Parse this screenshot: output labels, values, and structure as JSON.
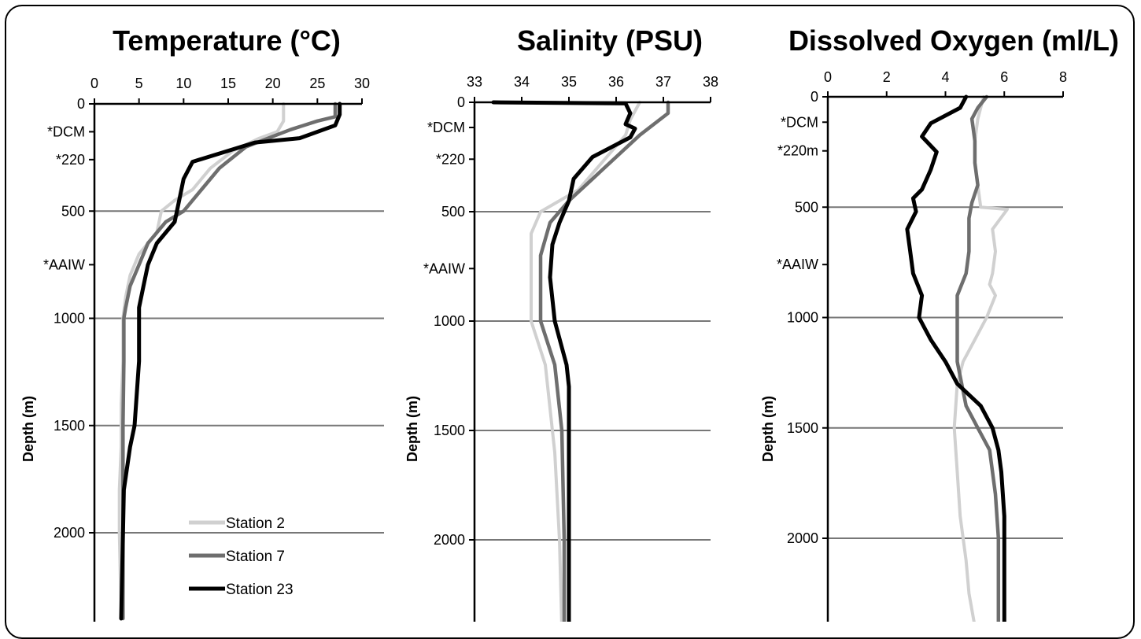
{
  "legend": [
    "Station 2",
    "Station 7",
    "Station 23"
  ],
  "colors": {
    "Station 2": "#d0d0d0",
    "Station 7": "#6e6e6e",
    "Station 23": "#000000",
    "hline": "#777777"
  },
  "chart_data": [
    {
      "type": "line",
      "title": "Temperature (°C)",
      "xlabel": "",
      "ylabel": "Depth (m)",
      "xlim": [
        0,
        30
      ],
      "xticks": [
        0,
        5,
        10,
        15,
        20,
        25,
        30
      ],
      "ylim": [
        0,
        2400
      ],
      "y_inverted": true,
      "yticks": [
        0,
        500,
        1000,
        1500,
        2000
      ],
      "hlines": [
        500,
        1000,
        1500,
        2000
      ],
      "annotations": [
        {
          "text": "*DCM",
          "depth": 130
        },
        {
          "text": "*220",
          "depth": 260
        },
        {
          "text": "*AAIW",
          "depth": 750
        }
      ],
      "legend_position": "bottom-right",
      "series": [
        {
          "name": "Station 2",
          "x": [
            21.2,
            21.2,
            20.5,
            18.5,
            15.5,
            13,
            11,
            9,
            7.5,
            7,
            6,
            5,
            4,
            3.5,
            3.2,
            3.2,
            3,
            3,
            2.8,
            2.8,
            2.9,
            3
          ],
          "y": [
            0,
            80,
            130,
            160,
            220,
            300,
            400,
            450,
            500,
            600,
            650,
            700,
            800,
            900,
            1000,
            1200,
            1400,
            1600,
            1800,
            2000,
            2200,
            2400
          ]
        },
        {
          "name": "Station 7",
          "x": [
            27,
            27,
            25,
            22,
            17,
            14,
            12,
            10,
            8,
            6,
            5,
            4,
            3.5,
            3.3,
            3.3,
            3.2,
            3.2,
            3.2,
            3.2,
            3.2
          ],
          "y": [
            0,
            60,
            80,
            120,
            200,
            300,
            400,
            500,
            550,
            650,
            750,
            850,
            950,
            1000,
            1200,
            1500,
            1800,
            2000,
            2200,
            2400
          ]
        },
        {
          "name": "Station 23",
          "x": [
            27.5,
            27.5,
            27,
            23,
            18,
            11,
            10,
            9.5,
            9,
            7,
            6,
            5.5,
            5,
            5,
            4.5,
            4,
            3.3,
            3.2,
            3
          ],
          "y": [
            0,
            50,
            100,
            160,
            180,
            270,
            350,
            450,
            550,
            650,
            750,
            850,
            950,
            1200,
            1500,
            1600,
            1800,
            2000,
            2400
          ]
        }
      ]
    },
    {
      "type": "line",
      "title": "Salinity (PSU)",
      "xlabel": "",
      "ylabel": "Depth (m)",
      "xlim": [
        33,
        38
      ],
      "xticks": [
        33,
        34,
        35,
        36,
        37,
        38
      ],
      "ylim": [
        0,
        2400
      ],
      "y_inverted": true,
      "yticks": [
        0,
        500,
        1000,
        1500,
        2000
      ],
      "hlines": [
        500,
        1000,
        1500,
        2000
      ],
      "annotations": [
        {
          "text": "*DCM",
          "depth": 115
        },
        {
          "text": "*220",
          "depth": 260
        },
        {
          "text": "*AAIW",
          "depth": 760
        }
      ],
      "legend_position": "bottom-right",
      "series": [
        {
          "name": "Station 2",
          "x": [
            36.5,
            36.3,
            36.2,
            36,
            35.6,
            35.2,
            34.8,
            34.4,
            34.2,
            34.2,
            34.2,
            34.2,
            34.5,
            34.7,
            34.8,
            34.85
          ],
          "y": [
            0,
            80,
            150,
            200,
            300,
            400,
            450,
            500,
            600,
            750,
            900,
            1000,
            1200,
            1600,
            2000,
            2400
          ]
        },
        {
          "name": "Station 7",
          "x": [
            37.1,
            37.1,
            36.5,
            36,
            35.5,
            35,
            34.6,
            34.4,
            34.4,
            34.4,
            34.7,
            34.85,
            34.9,
            34.9
          ],
          "y": [
            0,
            50,
            150,
            250,
            350,
            450,
            550,
            700,
            900,
            1000,
            1200,
            1500,
            2000,
            2400
          ]
        },
        {
          "name": "Station 23",
          "x": [
            33.4,
            36.2,
            36.3,
            36.2,
            36.4,
            36.3,
            35.5,
            35.1,
            35,
            34.8,
            34.65,
            34.6,
            34.7,
            34.95,
            35,
            35,
            35
          ],
          "y": [
            0,
            5,
            50,
            100,
            120,
            160,
            250,
            350,
            450,
            550,
            650,
            800,
            1000,
            1200,
            1300,
            1500,
            2400
          ]
        }
      ]
    },
    {
      "type": "line",
      "title": "Dissolved Oxygen (ml/L)",
      "xlabel": "",
      "ylabel": "Depth (m)",
      "xlim": [
        0,
        8
      ],
      "xticks": [
        0,
        2,
        4,
        6,
        8
      ],
      "ylim": [
        0,
        2400
      ],
      "y_inverted": true,
      "yticks": [
        0,
        500,
        1000,
        1500,
        2000
      ],
      "hlines": [
        500,
        1000,
        1500,
        2000
      ],
      "annotations": [
        {
          "text": "*DCM",
          "depth": 115
        },
        {
          "text": "*220m",
          "depth": 245
        },
        {
          "text": "*AAIW",
          "depth": 760
        }
      ],
      "legend_position": "bottom-right",
      "series": [
        {
          "name": "Station 2",
          "x": [
            5.3,
            5.2,
            5.1,
            5.0,
            5.0,
            5.1,
            5.2,
            6.1,
            5.6,
            5.7,
            5.6,
            5.5,
            5.7,
            5.4,
            5.0,
            4.6,
            4.4,
            4.3,
            4.4,
            4.5,
            4.7,
            4.8,
            5.0
          ],
          "y": [
            0,
            50,
            100,
            200,
            300,
            400,
            500,
            510,
            600,
            700,
            800,
            850,
            900,
            1000,
            1100,
            1200,
            1300,
            1500,
            1700,
            1900,
            2100,
            2250,
            2400
          ]
        },
        {
          "name": "Station 7",
          "x": [
            5.4,
            5.1,
            4.9,
            5.0,
            5.0,
            5.1,
            4.9,
            4.8,
            4.8,
            4.8,
            4.8,
            4.7,
            4.4,
            4.4,
            4.4,
            4.7,
            5.1,
            5.5,
            5.7,
            5.8,
            5.8,
            5.8
          ],
          "y": [
            0,
            50,
            100,
            200,
            300,
            400,
            480,
            550,
            620,
            660,
            700,
            800,
            900,
            1000,
            1200,
            1400,
            1500,
            1600,
            1800,
            2000,
            2200,
            2400
          ]
        },
        {
          "name": "Station 23",
          "x": [
            4.7,
            4.5,
            3.5,
            3.2,
            3.7,
            3.5,
            3.2,
            2.9,
            3.0,
            2.7,
            2.8,
            2.9,
            3.2,
            3.1,
            3.3,
            3.5,
            4.0,
            4.4,
            5.2,
            5.6,
            5.8,
            5.9,
            6.0,
            6.0,
            6.0
          ],
          "y": [
            0,
            50,
            120,
            180,
            250,
            330,
            420,
            460,
            520,
            600,
            700,
            800,
            900,
            1000,
            1050,
            1100,
            1200,
            1300,
            1400,
            1500,
            1600,
            1700,
            1900,
            2100,
            2400
          ]
        }
      ]
    }
  ]
}
